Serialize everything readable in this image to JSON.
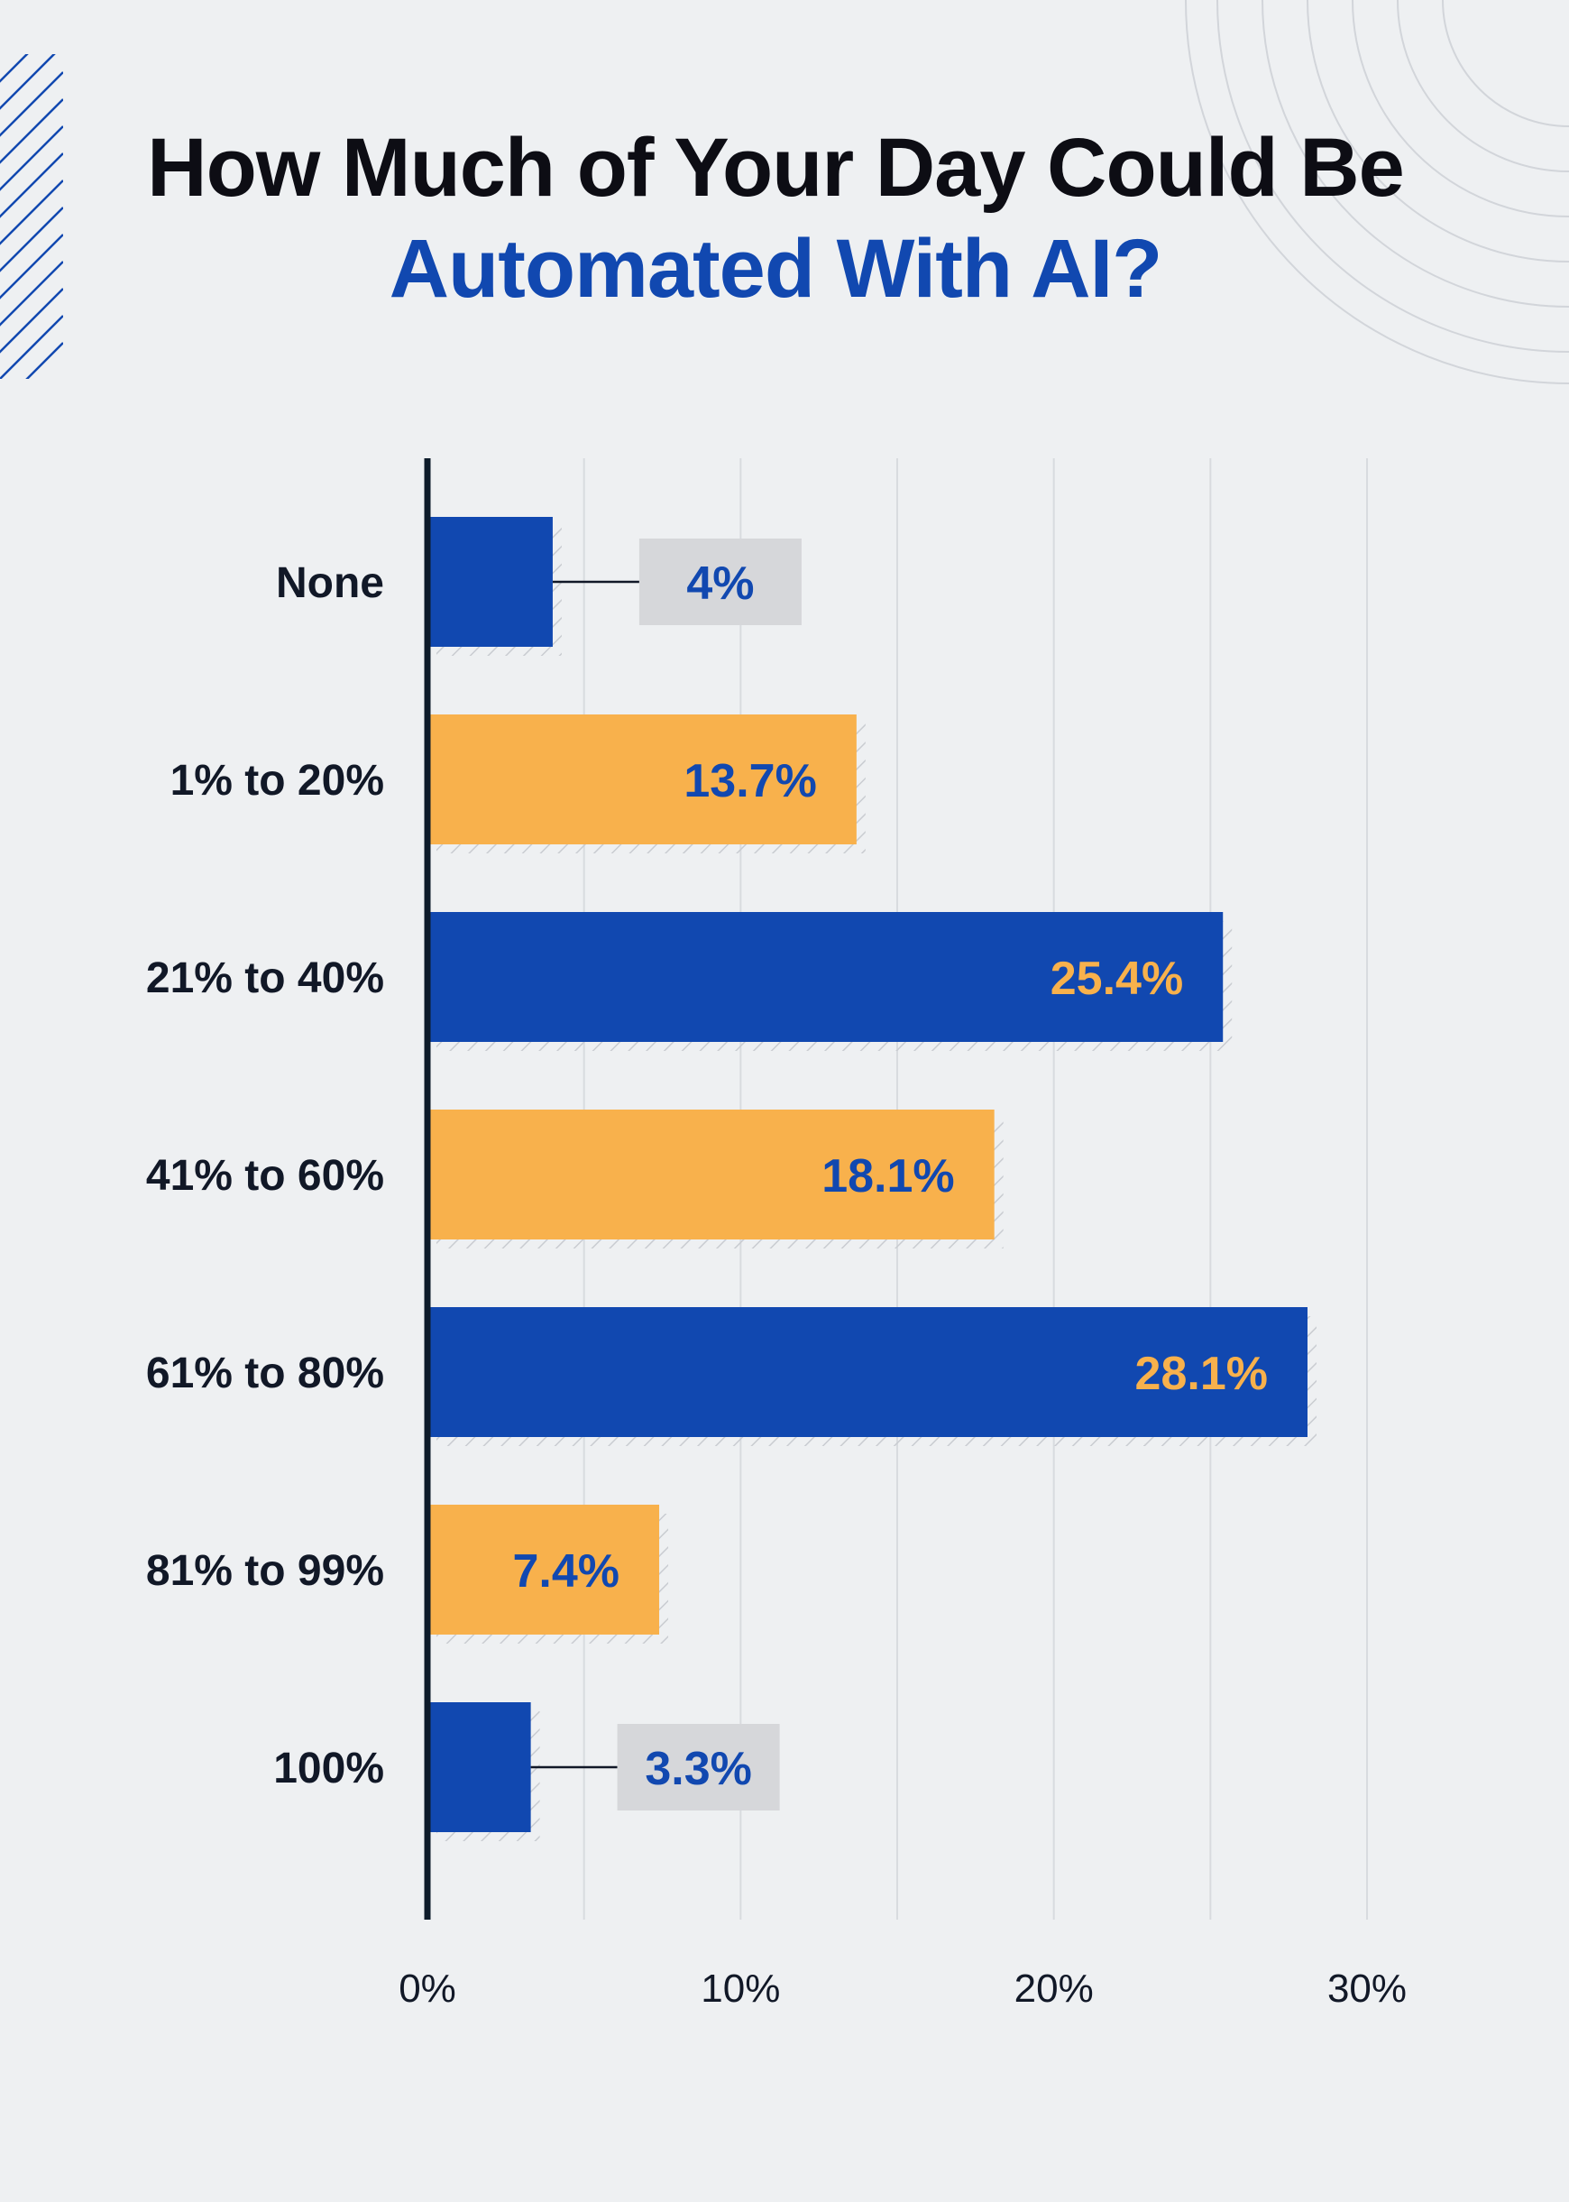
{
  "title": {
    "line1": "How Much of Your Day Could Be",
    "line2": "Automated With AI?"
  },
  "colors": {
    "blue": "#1148B0",
    "orange": "#F8B14C",
    "title_dark": "#0D0D14",
    "callout_bg": "#D6D7DA",
    "background": "#EEF0F2"
  },
  "chart_data": {
    "type": "bar",
    "orientation": "horizontal",
    "categories": [
      "None",
      "1% to 20%",
      "21% to 40%",
      "41% to 60%",
      "61% to 80%",
      "81% to 99%",
      "100%"
    ],
    "values": [
      4,
      13.7,
      25.4,
      18.1,
      28.1,
      7.4,
      3.3
    ],
    "value_labels": [
      "4%",
      "13.7%",
      "25.4%",
      "18.1%",
      "28.1%",
      "7.4%",
      "3.3%"
    ],
    "bar_colors": [
      "blue",
      "orange",
      "blue",
      "orange",
      "blue",
      "orange",
      "blue"
    ],
    "callout_labels": [
      true,
      false,
      false,
      false,
      false,
      false,
      true
    ],
    "x_ticks": [
      0,
      10,
      20,
      30
    ],
    "x_tick_labels": [
      "0%",
      "10%",
      "20%",
      "30%"
    ],
    "xlim": [
      0,
      30
    ],
    "grid": true,
    "title": "How Much of Your Day Could Be Automated With AI?"
  }
}
